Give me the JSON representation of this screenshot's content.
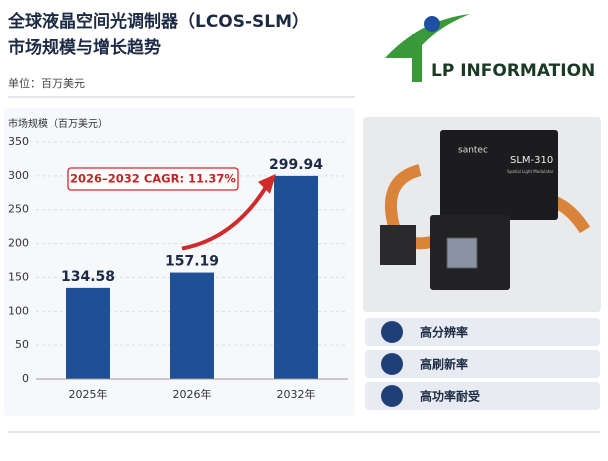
{
  "header": {
    "title_lines": [
      "全球液晶空间光调制器（LCOS-SLM）",
      "市场规模与增长趋势"
    ],
    "unit": "单位：百万美元"
  },
  "logo": {
    "text": "LP INFORMATION"
  },
  "chart_data": {
    "type": "bar",
    "y_label": "市场规模（百万美元）",
    "categories": [
      "2025年",
      "2026年",
      "2032年"
    ],
    "values": [
      134.58,
      157.19,
      299.94
    ],
    "color": "#1f4f94",
    "ylim": [
      0,
      350
    ],
    "yticks": [
      0,
      50,
      100,
      150,
      200,
      250,
      300,
      350
    ],
    "grid": true,
    "annotation": "2026–2032 CAGR: 11.37%"
  },
  "product": {
    "brand": "santec",
    "model": "SLM-310",
    "subtitle": "Spatial Light Modulator"
  },
  "features": [
    "高分辨率",
    "高刷新率",
    "高功率耐受"
  ]
}
